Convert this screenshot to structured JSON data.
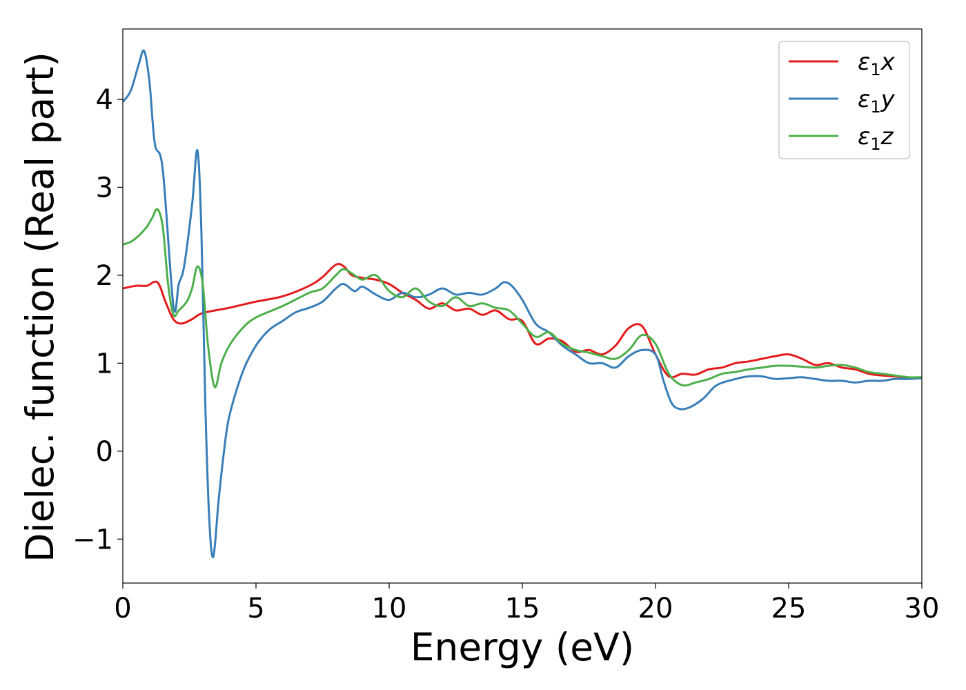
{
  "chart_data": {
    "type": "line",
    "title": "",
    "xlabel": "Energy (eV)",
    "ylabel": "Dielec. function (Real part)",
    "xlim": [
      0,
      30
    ],
    "ylim": [
      -1.5,
      4.8
    ],
    "xticks": [
      0,
      5,
      10,
      15,
      20,
      25,
      30
    ],
    "xtick_labels": [
      "0",
      "5",
      "10",
      "15",
      "20",
      "25",
      "30"
    ],
    "yticks": [
      -1,
      0,
      1,
      2,
      3,
      4
    ],
    "ytick_labels": [
      "−1",
      "0",
      "1",
      "2",
      "3",
      "4"
    ],
    "grid": false,
    "legend_position": "top-right",
    "series": [
      {
        "name": "ε₁x",
        "legend_base": "ε",
        "legend_sub": "1",
        "legend_suffix": "x",
        "color": "#e41a1c",
        "x": [
          0,
          0.5,
          0.9,
          1.3,
          1.6,
          1.9,
          2.2,
          2.6,
          3.0,
          4.0,
          5.0,
          6.0,
          7.0,
          7.5,
          8.0,
          8.3,
          8.6,
          9.0,
          9.5,
          10.0,
          10.5,
          11.0,
          11.5,
          12.0,
          12.5,
          13.0,
          13.5,
          14.0,
          14.5,
          15.0,
          15.5,
          16.0,
          16.5,
          17.0,
          17.5,
          18.0,
          18.5,
          19.0,
          19.5,
          20.0,
          20.5,
          21.0,
          21.5,
          22.0,
          22.5,
          23.0,
          23.5,
          24.0,
          24.5,
          25.0,
          25.5,
          26.0,
          26.5,
          27.0,
          27.5,
          28.0,
          28.5,
          29.0,
          29.5,
          30.0
        ],
        "y": [
          1.85,
          1.88,
          1.88,
          1.92,
          1.7,
          1.5,
          1.45,
          1.5,
          1.57,
          1.63,
          1.7,
          1.76,
          1.88,
          1.98,
          2.12,
          2.1,
          2.0,
          1.97,
          1.95,
          1.9,
          1.8,
          1.72,
          1.62,
          1.68,
          1.6,
          1.62,
          1.55,
          1.6,
          1.5,
          1.48,
          1.22,
          1.28,
          1.25,
          1.13,
          1.15,
          1.1,
          1.2,
          1.4,
          1.42,
          1.1,
          0.85,
          0.88,
          0.87,
          0.93,
          0.95,
          1.0,
          1.02,
          1.05,
          1.08,
          1.1,
          1.05,
          0.98,
          1.0,
          0.95,
          0.93,
          0.88,
          0.86,
          0.85,
          0.83,
          0.83
        ]
      },
      {
        "name": "ε₁y",
        "legend_base": "ε",
        "legend_sub": "1",
        "legend_suffix": "y",
        "color": "#377eb8",
        "x": [
          0,
          0.3,
          0.6,
          0.8,
          1.0,
          1.2,
          1.5,
          1.9,
          2.1,
          2.3,
          2.6,
          2.8,
          2.95,
          3.1,
          3.25,
          3.4,
          3.6,
          3.8,
          4.0,
          4.5,
          5.0,
          5.5,
          6.0,
          6.5,
          7.0,
          7.5,
          8.0,
          8.3,
          8.7,
          9.0,
          9.5,
          10.0,
          10.5,
          11.0,
          11.5,
          12.0,
          12.5,
          13.0,
          13.5,
          14.0,
          14.3,
          14.6,
          15.0,
          15.5,
          16.0,
          16.5,
          17.0,
          17.5,
          18.0,
          18.5,
          19.0,
          19.5,
          20.0,
          20.3,
          20.6,
          20.9,
          21.3,
          21.8,
          22.3,
          23.0,
          23.5,
          24.0,
          24.5,
          25.0,
          25.5,
          26.0,
          26.5,
          27.0,
          27.5,
          28.0,
          28.5,
          29.0,
          29.5,
          30.0
        ],
        "y": [
          3.97,
          4.1,
          4.4,
          4.55,
          4.2,
          3.5,
          3.2,
          1.65,
          1.9,
          2.1,
          2.8,
          3.42,
          2.5,
          0.5,
          -0.8,
          -1.2,
          -0.55,
          0.0,
          0.4,
          0.9,
          1.2,
          1.38,
          1.48,
          1.58,
          1.63,
          1.7,
          1.85,
          1.9,
          1.82,
          1.87,
          1.78,
          1.72,
          1.8,
          1.75,
          1.78,
          1.85,
          1.78,
          1.8,
          1.78,
          1.85,
          1.92,
          1.88,
          1.72,
          1.45,
          1.35,
          1.2,
          1.1,
          1.0,
          1.0,
          0.95,
          1.08,
          1.15,
          1.1,
          0.8,
          0.55,
          0.48,
          0.5,
          0.6,
          0.75,
          0.82,
          0.85,
          0.85,
          0.82,
          0.83,
          0.84,
          0.82,
          0.8,
          0.8,
          0.78,
          0.8,
          0.8,
          0.82,
          0.82,
          0.83
        ]
      },
      {
        "name": "ε₁z",
        "legend_base": "ε",
        "legend_sub": "1",
        "legend_suffix": "z",
        "color": "#4daf4a",
        "x": [
          0,
          0.3,
          0.6,
          0.9,
          1.1,
          1.3,
          1.5,
          1.7,
          1.9,
          2.1,
          2.4,
          2.6,
          2.8,
          3.0,
          3.2,
          3.45,
          3.7,
          4.0,
          4.5,
          5.0,
          6.0,
          7.0,
          7.5,
          8.0,
          8.3,
          8.7,
          9.0,
          9.5,
          10.0,
          10.5,
          11.0,
          11.5,
          12.0,
          12.5,
          13.0,
          13.5,
          14.0,
          14.5,
          15.0,
          15.5,
          16.0,
          16.5,
          17.0,
          17.5,
          18.0,
          18.5,
          19.0,
          19.5,
          20.0,
          20.5,
          21.0,
          21.5,
          22.0,
          22.5,
          23.0,
          23.5,
          24.0,
          24.5,
          25.0,
          25.5,
          26.0,
          26.5,
          27.0,
          27.5,
          28.0,
          28.5,
          29.0,
          29.5,
          30.0
        ],
        "y": [
          2.35,
          2.38,
          2.45,
          2.55,
          2.65,
          2.75,
          2.55,
          1.9,
          1.55,
          1.6,
          1.7,
          1.85,
          2.1,
          1.9,
          1.2,
          0.73,
          1.0,
          1.2,
          1.4,
          1.52,
          1.65,
          1.8,
          1.85,
          2.0,
          2.07,
          2.0,
          1.95,
          2.0,
          1.82,
          1.75,
          1.85,
          1.7,
          1.65,
          1.75,
          1.65,
          1.68,
          1.63,
          1.6,
          1.45,
          1.3,
          1.35,
          1.22,
          1.15,
          1.12,
          1.08,
          1.05,
          1.15,
          1.32,
          1.22,
          0.88,
          0.75,
          0.78,
          0.82,
          0.88,
          0.9,
          0.93,
          0.95,
          0.97,
          0.97,
          0.96,
          0.95,
          0.97,
          0.98,
          0.95,
          0.9,
          0.88,
          0.86,
          0.84,
          0.84
        ]
      }
    ]
  }
}
